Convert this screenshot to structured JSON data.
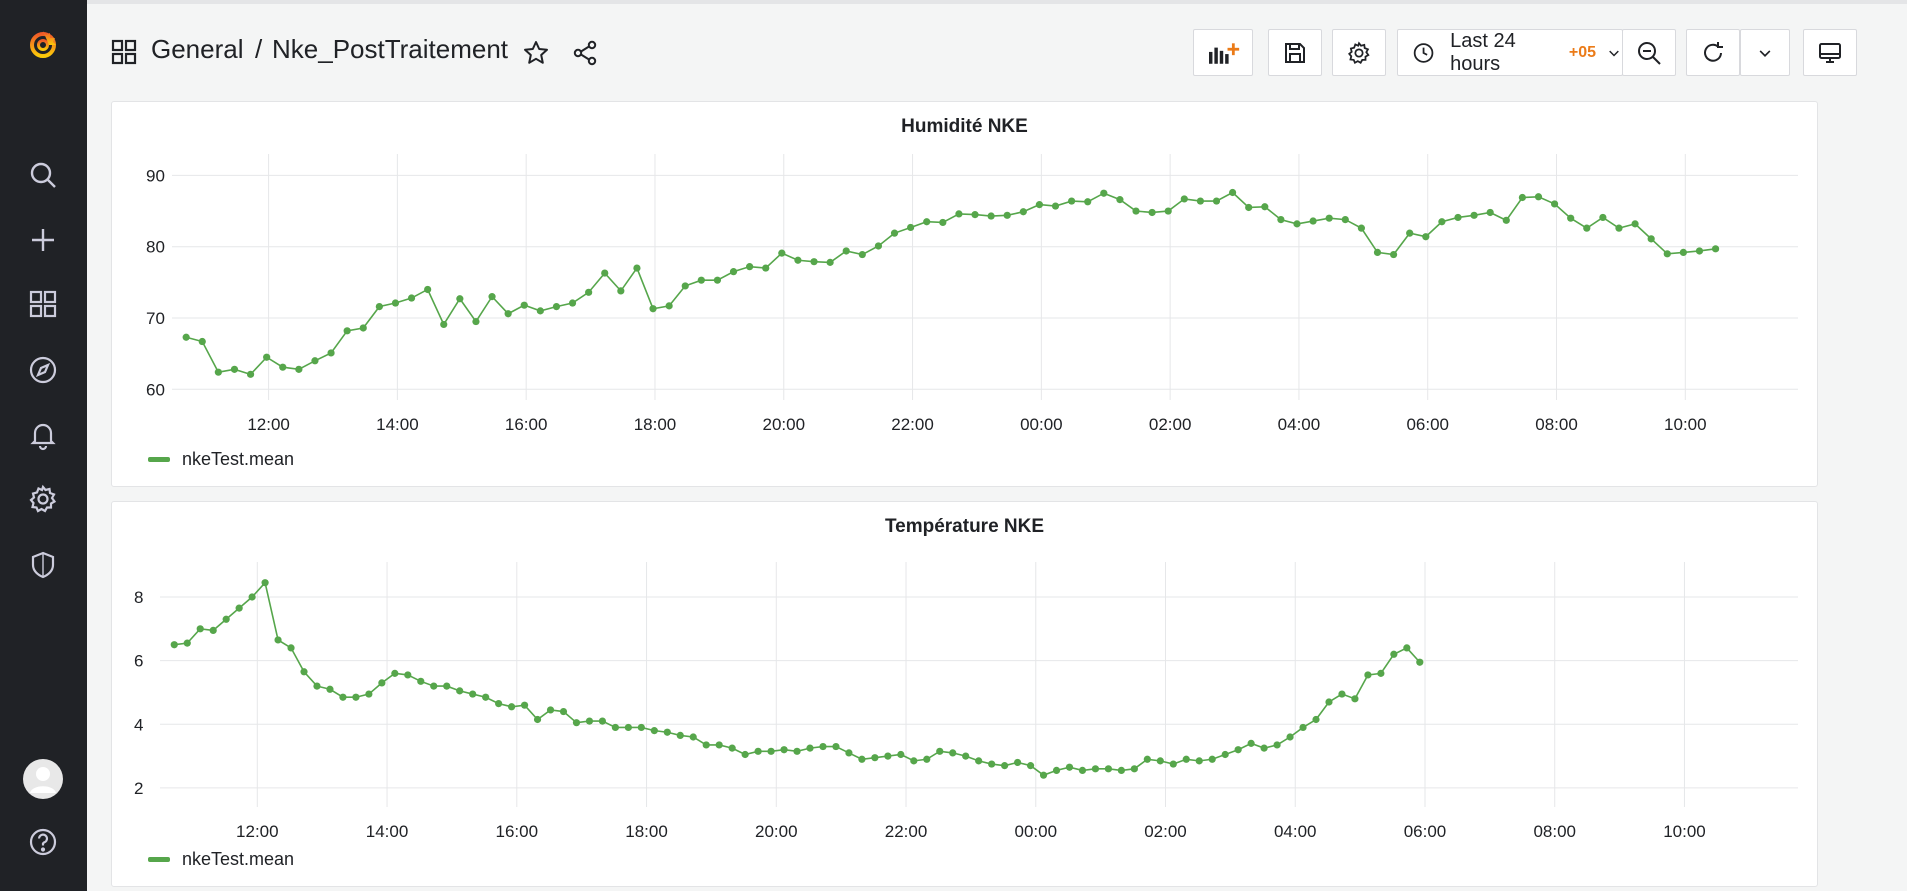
{
  "app": {
    "name": "Grafana"
  },
  "colors": {
    "sidebar_bg": "#202226",
    "series": "#56a64b",
    "accent_orange": "#eb7b18"
  },
  "sidebar": {
    "items": [
      {
        "name": "grafana-logo-icon"
      },
      {
        "name": "search-icon"
      },
      {
        "name": "plus-icon"
      },
      {
        "name": "dashboards-icon"
      },
      {
        "name": "explore-compass-icon"
      },
      {
        "name": "alerting-bell-icon"
      },
      {
        "name": "configuration-gear-icon"
      },
      {
        "name": "server-admin-shield-icon"
      },
      {
        "name": "user-avatar-icon"
      },
      {
        "name": "help-icon"
      }
    ]
  },
  "header": {
    "folder": "General",
    "separator": "/",
    "dashboard": "Nke_PostTraitement",
    "time_range": "Last 24 hours",
    "timezone": "+05"
  },
  "toolbar": {
    "icons": [
      "add-panel-icon",
      "save-icon",
      "settings-icon",
      "clock-icon",
      "chevron-down-icon",
      "zoom-out-icon",
      "refresh-icon",
      "chevron-down-icon",
      "tv-mode-icon"
    ]
  },
  "chart_data": [
    {
      "type": "line",
      "title": "Humidité NKE",
      "xlabel": "",
      "ylabel": "",
      "x_ticks": [
        "12:00",
        "14:00",
        "16:00",
        "18:00",
        "20:00",
        "22:00",
        "00:00",
        "02:00",
        "04:00",
        "06:00",
        "08:00",
        "10:00"
      ],
      "x_tick_hours": [
        12,
        14,
        16,
        18,
        20,
        22,
        24,
        26,
        28,
        30,
        32,
        34
      ],
      "y_ticks": [
        60,
        70,
        80,
        90
      ],
      "ylim": [
        58.5,
        93
      ],
      "xlim": [
        10.5,
        35.75
      ],
      "grid": true,
      "legend": "bottom-left",
      "series": [
        {
          "name": "nkeTest.mean",
          "color": "#56a64b",
          "x_start_hour": 10.72,
          "x_step_hours": 0.25,
          "values": [
            67.3,
            66.7,
            62.4,
            62.8,
            62.1,
            64.5,
            63.1,
            62.8,
            64.0,
            65.1,
            68.2,
            68.6,
            71.6,
            72.1,
            72.8,
            74.0,
            69.1,
            72.7,
            69.5,
            73.0,
            70.6,
            71.8,
            71.0,
            71.6,
            72.1,
            73.6,
            76.3,
            73.8,
            77.0,
            71.3,
            71.7,
            74.5,
            75.3,
            75.3,
            76.5,
            77.2,
            77.0,
            79.1,
            78.1,
            77.9,
            77.8,
            79.4,
            78.9,
            80.1,
            81.9,
            82.7,
            83.5,
            83.4,
            84.6,
            84.5,
            84.3,
            84.4,
            84.9,
            85.9,
            85.7,
            86.4,
            86.3,
            87.5,
            86.6,
            85.0,
            84.8,
            85.0,
            86.7,
            86.4,
            86.4,
            87.6,
            85.5,
            85.6,
            83.8,
            83.2,
            83.6,
            84.0,
            83.8,
            82.6,
            79.2,
            78.9,
            81.9,
            81.4,
            83.5,
            84.1,
            84.4,
            84.8,
            83.7,
            86.9,
            87.0,
            86.0,
            84.0,
            82.6,
            84.1,
            82.6,
            83.2,
            81.1,
            79.0,
            79.2,
            79.4,
            79.7
          ]
        }
      ]
    },
    {
      "type": "line",
      "title": "Température NKE",
      "xlabel": "",
      "ylabel": "",
      "x_ticks": [
        "12:00",
        "14:00",
        "16:00",
        "18:00",
        "20:00",
        "22:00",
        "00:00",
        "02:00",
        "04:00",
        "06:00",
        "08:00",
        "10:00"
      ],
      "x_tick_hours": [
        12,
        14,
        16,
        18,
        20,
        22,
        24,
        26,
        28,
        30,
        32,
        34
      ],
      "y_ticks": [
        2,
        4,
        6,
        8
      ],
      "ylim": [
        1.4,
        9.1
      ],
      "xlim": [
        10.5,
        35.75
      ],
      "grid": true,
      "legend": "bottom-left",
      "series": [
        {
          "name": "nkeTest.mean",
          "color": "#56a64b",
          "x_start_hour": 10.72,
          "x_step_hours": 0.2,
          "values": [
            6.5,
            6.55,
            7.0,
            6.95,
            7.3,
            7.65,
            8.0,
            8.45,
            6.65,
            6.4,
            5.65,
            5.2,
            5.1,
            4.85,
            4.85,
            4.95,
            5.3,
            5.6,
            5.55,
            5.35,
            5.2,
            5.2,
            5.05,
            4.95,
            4.85,
            4.65,
            4.55,
            4.6,
            4.15,
            4.45,
            4.4,
            4.05,
            4.1,
            4.1,
            3.9,
            3.9,
            3.9,
            3.8,
            3.75,
            3.65,
            3.6,
            3.35,
            3.35,
            3.25,
            3.05,
            3.15,
            3.15,
            3.2,
            3.15,
            3.25,
            3.3,
            3.3,
            3.1,
            2.9,
            2.95,
            3.0,
            3.05,
            2.85,
            2.9,
            3.15,
            3.1,
            3.0,
            2.85,
            2.75,
            2.7,
            2.8,
            2.7,
            2.4,
            2.55,
            2.65,
            2.55,
            2.6,
            2.6,
            2.55,
            2.6,
            2.9,
            2.85,
            2.75,
            2.9,
            2.85,
            2.9,
            3.05,
            3.2,
            3.4,
            3.25,
            3.35,
            3.6,
            3.9,
            4.15,
            4.7,
            4.95,
            4.8,
            5.55,
            5.6,
            6.2,
            6.4,
            5.95
          ]
        }
      ]
    }
  ]
}
